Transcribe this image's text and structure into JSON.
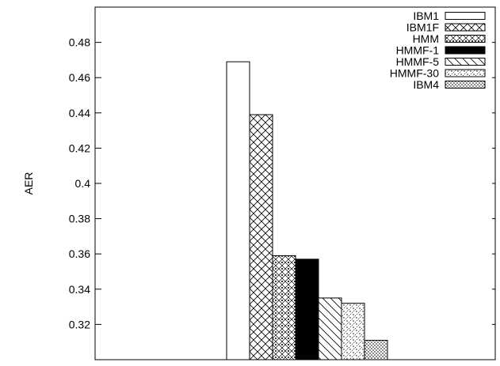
{
  "chart_data": {
    "type": "bar",
    "ylabel": "AER",
    "xlabel": "",
    "ylim": [
      0.3,
      0.5
    ],
    "yticks": [
      0.32,
      0.34,
      0.36,
      0.38,
      0.4,
      0.42,
      0.44,
      0.46,
      0.48
    ],
    "ytick_labels": [
      "0.32",
      "0.34",
      "0.36",
      "0.38",
      "0.4",
      "0.42",
      "0.44",
      "0.46",
      "0.48"
    ],
    "legend_position": "top-right",
    "series": [
      {
        "name": "IBM1",
        "value": 0.469,
        "pattern": "none",
        "fill": "#ffffff"
      },
      {
        "name": "IBM1F",
        "value": 0.439,
        "pattern": "crosshatch",
        "fill": "#ffffff"
      },
      {
        "name": "HMM",
        "value": 0.359,
        "pattern": "diamond-dots",
        "fill": "#ffffff"
      },
      {
        "name": "HMMF-1",
        "value": 0.357,
        "pattern": "solid",
        "fill": "#000000"
      },
      {
        "name": "HMMF-5",
        "value": 0.335,
        "pattern": "diagonal",
        "fill": "#ffffff"
      },
      {
        "name": "HMMF-30",
        "value": 0.332,
        "pattern": "dots-hatch",
        "fill": "#ffffff"
      },
      {
        "name": "IBM4",
        "value": 0.311,
        "pattern": "dense-dots",
        "fill": "#ffffff"
      }
    ]
  }
}
